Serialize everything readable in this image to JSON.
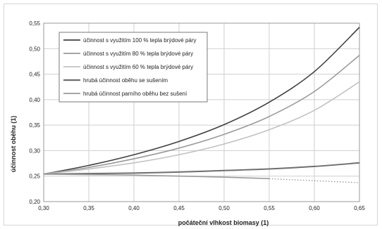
{
  "chart_data": {
    "type": "line",
    "title": "",
    "xlabel": "počáteční vlhkost biomasy (1)",
    "ylabel": "účinnost oběhu (1)",
    "xlim": [
      0.3,
      0.65
    ],
    "ylim": [
      0.2,
      0.55
    ],
    "xticks": [
      0.3,
      0.35,
      0.4,
      0.45,
      0.5,
      0.55,
      0.6,
      0.65
    ],
    "yticks": [
      0.2,
      0.25,
      0.3,
      0.35,
      0.4,
      0.45,
      0.5,
      0.55
    ],
    "xtick_labels": [
      "0,30",
      "0,35",
      "0,40",
      "0,45",
      "0,50",
      "0,55",
      "0,60",
      "0,65"
    ],
    "ytick_labels": [
      "0,20",
      "0,25",
      "0,30",
      "0,35",
      "0,40",
      "0,45",
      "0,50",
      "0,55"
    ],
    "grid": true,
    "legend_position": "top-left",
    "series": [
      {
        "name": "účinnost s využitím 100 % tepla brýdové páry",
        "color": "#404040",
        "style": "solid",
        "x": [
          0.3,
          0.35,
          0.4,
          0.45,
          0.5,
          0.55,
          0.6,
          0.65
        ],
        "y": [
          0.254,
          0.271,
          0.292,
          0.318,
          0.351,
          0.395,
          0.455,
          0.542
        ]
      },
      {
        "name": "účinnost s využitím 80 % tepla brýdové páry",
        "color": "#9a9a9a",
        "style": "solid",
        "x": [
          0.3,
          0.35,
          0.4,
          0.45,
          0.5,
          0.55,
          0.6,
          0.65
        ],
        "y": [
          0.254,
          0.267,
          0.284,
          0.305,
          0.332,
          0.367,
          0.416,
          0.487
        ]
      },
      {
        "name": "účinnost s využitím 60 % tepla brýdové páry",
        "color": "#c2c2c2",
        "style": "solid",
        "x": [
          0.3,
          0.35,
          0.4,
          0.45,
          0.5,
          0.55,
          0.6,
          0.65
        ],
        "y": [
          0.254,
          0.264,
          0.276,
          0.292,
          0.313,
          0.341,
          0.379,
          0.435
        ]
      },
      {
        "name": "hrubá účinnost oběhu se sušením",
        "color": "#6e6e6e",
        "style": "solid",
        "x": [
          0.3,
          0.35,
          0.4,
          0.45,
          0.5,
          0.55,
          0.6,
          0.65
        ],
        "y": [
          0.254,
          0.255,
          0.256,
          0.258,
          0.261,
          0.264,
          0.269,
          0.276
        ]
      },
      {
        "name": "hrubá účinnost parního oběhu bez sušení",
        "color": "#9a9a9a",
        "style": "solid-then-dotted",
        "x": [
          0.3,
          0.35,
          0.4,
          0.45,
          0.5,
          0.55,
          0.6,
          0.65
        ],
        "y": [
          0.254,
          0.253,
          0.252,
          0.25,
          0.248,
          0.245,
          0.241,
          0.237
        ],
        "dotted_from_x": 0.55
      }
    ]
  }
}
